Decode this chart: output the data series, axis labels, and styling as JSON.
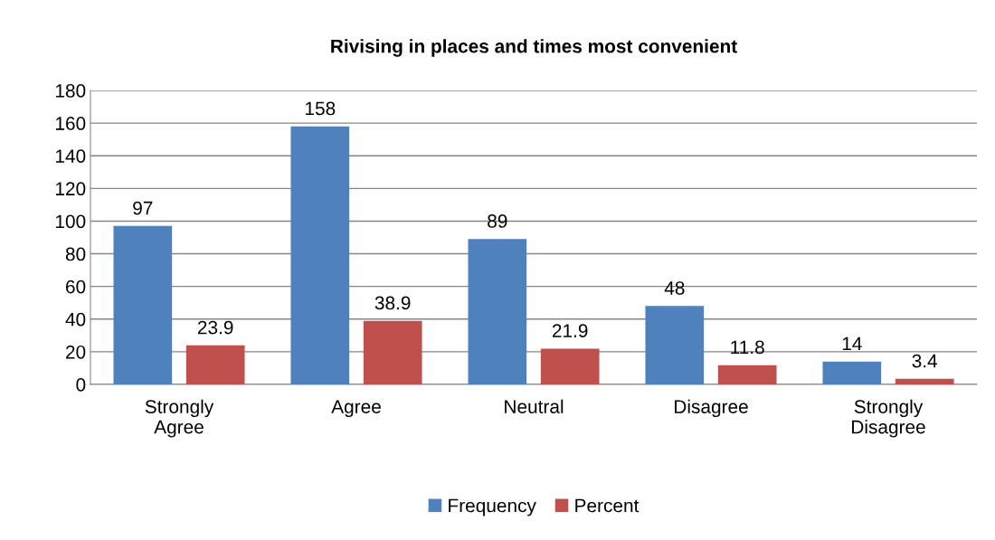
{
  "chart_data": {
    "type": "bar",
    "title": "Rivising in places and times most convenient",
    "categories": [
      "Strongly\nAgree",
      "Agree",
      "Neutral",
      "Disagree",
      "Strongly\nDisagree"
    ],
    "series": [
      {
        "name": "Frequency",
        "color": "#4f81bd",
        "values": [
          97,
          158,
          89,
          48,
          14
        ]
      },
      {
        "name": "Percent",
        "color": "#c0504d",
        "values": [
          23.9,
          38.9,
          21.9,
          11.8,
          3.4
        ]
      }
    ],
    "ylim": [
      0,
      180
    ],
    "yticks": [
      0,
      20,
      40,
      60,
      80,
      100,
      120,
      140,
      160,
      180
    ],
    "grid": "y",
    "legend": "bottom",
    "data_labels": true
  }
}
